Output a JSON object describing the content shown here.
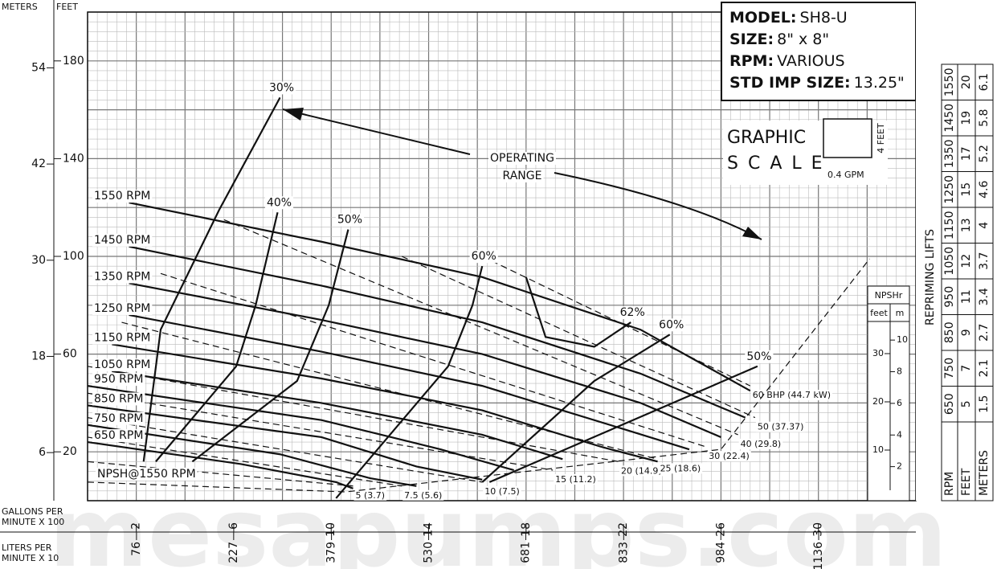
{
  "chart_data": {
    "type": "line",
    "y_header": "FEET",
    "y2_header": "METERS",
    "xlabel": [
      "GALLONS PER",
      "MINUTE X 100"
    ],
    "x2label": [
      "LITERS PER",
      "MINUTE X 10"
    ],
    "xlim": [
      0,
      34
    ],
    "xticks": [
      2,
      6,
      10,
      14,
      18,
      22,
      26,
      30
    ],
    "x2lim": [
      0,
      1287
    ],
    "x2ticks": [
      76,
      227,
      379,
      530,
      681,
      833,
      984,
      1136
    ],
    "ylim": [
      0,
      200
    ],
    "yticks": [
      20,
      60,
      100,
      140,
      180
    ],
    "y2lim": [
      0,
      60.96
    ],
    "y2ticks": [
      6,
      18,
      30,
      42,
      54
    ],
    "grid": {
      "major_step_x": 2,
      "minor_step_x": 0.4,
      "major_step_y": 20,
      "minor_step_y": 4
    },
    "color": "#111",
    "speed": [
      {
        "name": "1550 RPM",
        "x": [
          1.7,
          9.6,
          16.2,
          22.7,
          27.2
        ],
        "values": [
          122,
          106,
          91.5,
          70,
          45
        ]
      },
      {
        "name": "1450 RPM",
        "x": [
          1.7,
          9.6,
          16.2,
          22.7,
          27
        ],
        "values": [
          104,
          88,
          73,
          52,
          34
        ]
      },
      {
        "name": "1350 RPM",
        "x": [
          1.7,
          9.6,
          16.2,
          22.7,
          26
        ],
        "values": [
          89,
          74,
          60,
          40,
          26
        ]
      },
      {
        "name": "1250 RPM",
        "x": [
          1.7,
          9.6,
          16.2,
          22.1,
          24.7
        ],
        "values": [
          76,
          61,
          47,
          29,
          21
        ]
      },
      {
        "name": "1150 RPM",
        "x": [
          1,
          9.6,
          16.2,
          21.1,
          23.4
        ],
        "values": [
          64,
          50,
          37,
          22,
          16
        ]
      },
      {
        "name": "1050 RPM",
        "x": [
          1,
          9.6,
          16.2,
          19.5
        ],
        "values": [
          53,
          40,
          27,
          17
        ]
      },
      {
        "name": "950 RPM",
        "x": [
          0,
          9.6,
          14.5,
          17.5
        ],
        "values": [
          47,
          33,
          21,
          12.5
        ]
      },
      {
        "name": "850 RPM",
        "x": [
          0,
          9.6,
          13.5,
          16.2
        ],
        "values": [
          39,
          26,
          14,
          8.6
        ]
      },
      {
        "name": "750 RPM",
        "x": [
          0,
          7.9,
          11.6,
          13.5
        ],
        "values": [
          31,
          19,
          9.2,
          6
        ]
      },
      {
        "name": "650 RPM",
        "x": [
          0,
          6.3,
          10.2,
          10.9
        ],
        "values": [
          24,
          15,
          7.6,
          5
        ]
      }
    ],
    "efficiency": [
      {
        "name": "30%",
        "x": [
          2.3,
          3,
          5.4,
          7.9
        ],
        "values": [
          16,
          70,
          119,
          165
        ]
      },
      {
        "name": "40%",
        "x": [
          2.8,
          6.1,
          6.9,
          7.8
        ],
        "values": [
          16,
          55,
          80,
          118
        ]
      },
      {
        "name": "50%",
        "x": [
          4.3,
          8.6,
          9.9,
          10.7
        ],
        "values": [
          16,
          49,
          80,
          111
        ]
      },
      {
        "name": "60%",
        "x": [
          10.2,
          14.8,
          15.8,
          16.2
        ],
        "values": [
          1,
          55,
          80,
          96
        ]
      },
      {
        "name": "62%",
        "x": [
          18,
          18.8,
          20.8,
          22.3
        ],
        "values": [
          91.5,
          67,
          63,
          73
        ]
      },
      {
        "name": "60%",
        "x": [
          16.2,
          20.8,
          23.9
        ],
        "values": [
          7.6,
          49,
          68
        ]
      },
      {
        "name": "50%",
        "x": [
          16.5,
          27.5
        ],
        "values": [
          7.6,
          55
        ]
      }
    ],
    "power": [
      {
        "name": "5 (3.7)",
        "x": [
          0,
          10.9
        ],
        "values": [
          16,
          6
        ]
      },
      {
        "name": "7.5 (5.6)",
        "x": [
          0,
          12.9
        ],
        "values": [
          26,
          6
        ]
      },
      {
        "name": "10 (7.5)",
        "x": [
          0,
          16.2
        ],
        "values": [
          34,
          7.6
        ]
      },
      {
        "name": "15 (11.2)",
        "x": [
          0,
          19.1
        ],
        "values": [
          44,
          12.5
        ]
      },
      {
        "name": "20 (14.9)",
        "x": [
          0,
          21.8
        ],
        "values": [
          55,
          16
        ]
      },
      {
        "name": "25 (18.6)",
        "x": [
          1.4,
          23.4
        ],
        "values": [
          73,
          17
        ]
      },
      {
        "name": "30 (22.4)",
        "x": [
          3,
          25.4
        ],
        "values": [
          93,
          22
        ]
      },
      {
        "name": "40 (29.8)",
        "x": [
          5.6,
          26.7
        ],
        "values": [
          115,
          27
        ]
      },
      {
        "name": "50 (37.37)",
        "x": [
          12.9,
          27.4
        ],
        "values": [
          100,
          34
        ]
      },
      {
        "name": "60 BHP (44.7 kW)",
        "x": [
          16.2,
          27.2
        ],
        "values": [
          100,
          47
        ]
      }
    ],
    "npsh": {
      "name": "NPSH@1550 RPM",
      "x": [
        0,
        10.6,
        26,
        32.1
      ],
      "values": [
        7.6,
        3.6,
        21,
        99
      ]
    },
    "annotation": [
      "OPERATING",
      "RANGE"
    ]
  },
  "model_box": [
    [
      "MODEL:",
      "SH8-U"
    ],
    [
      "SIZE:",
      "8\" x 8\""
    ],
    [
      "RPM:",
      "VARIOUS"
    ],
    [
      "STD IMP SIZE:",
      "13.25\""
    ]
  ],
  "graphic_scale": {
    "line1": "GRAPHIC",
    "line2": "SCALE",
    "height": "4 FEET",
    "width": "0.4 GPM"
  },
  "npshr_scale": {
    "title": "NPSHr",
    "feet_header": "feet",
    "m_header": "m",
    "feet_ticks": [
      10,
      20,
      30
    ],
    "m_ticks": [
      2,
      4,
      6,
      8,
      10
    ]
  },
  "repriming_lifts": {
    "title": "REPRIMING LIFTS",
    "headers": [
      "RPM",
      "FEET",
      "METERS"
    ],
    "rows": [
      [
        1550,
        20,
        6.1
      ],
      [
        1450,
        19,
        5.8
      ],
      [
        1350,
        17,
        5.2
      ],
      [
        1250,
        15,
        4.6
      ],
      [
        1150,
        13,
        4
      ],
      [
        1050,
        12,
        3.7
      ],
      [
        950,
        11,
        3.4
      ],
      [
        850,
        9,
        2.7
      ],
      [
        750,
        7,
        2.1
      ],
      [
        650,
        5,
        1.5
      ]
    ]
  },
  "watermark": "mesapumps.com"
}
